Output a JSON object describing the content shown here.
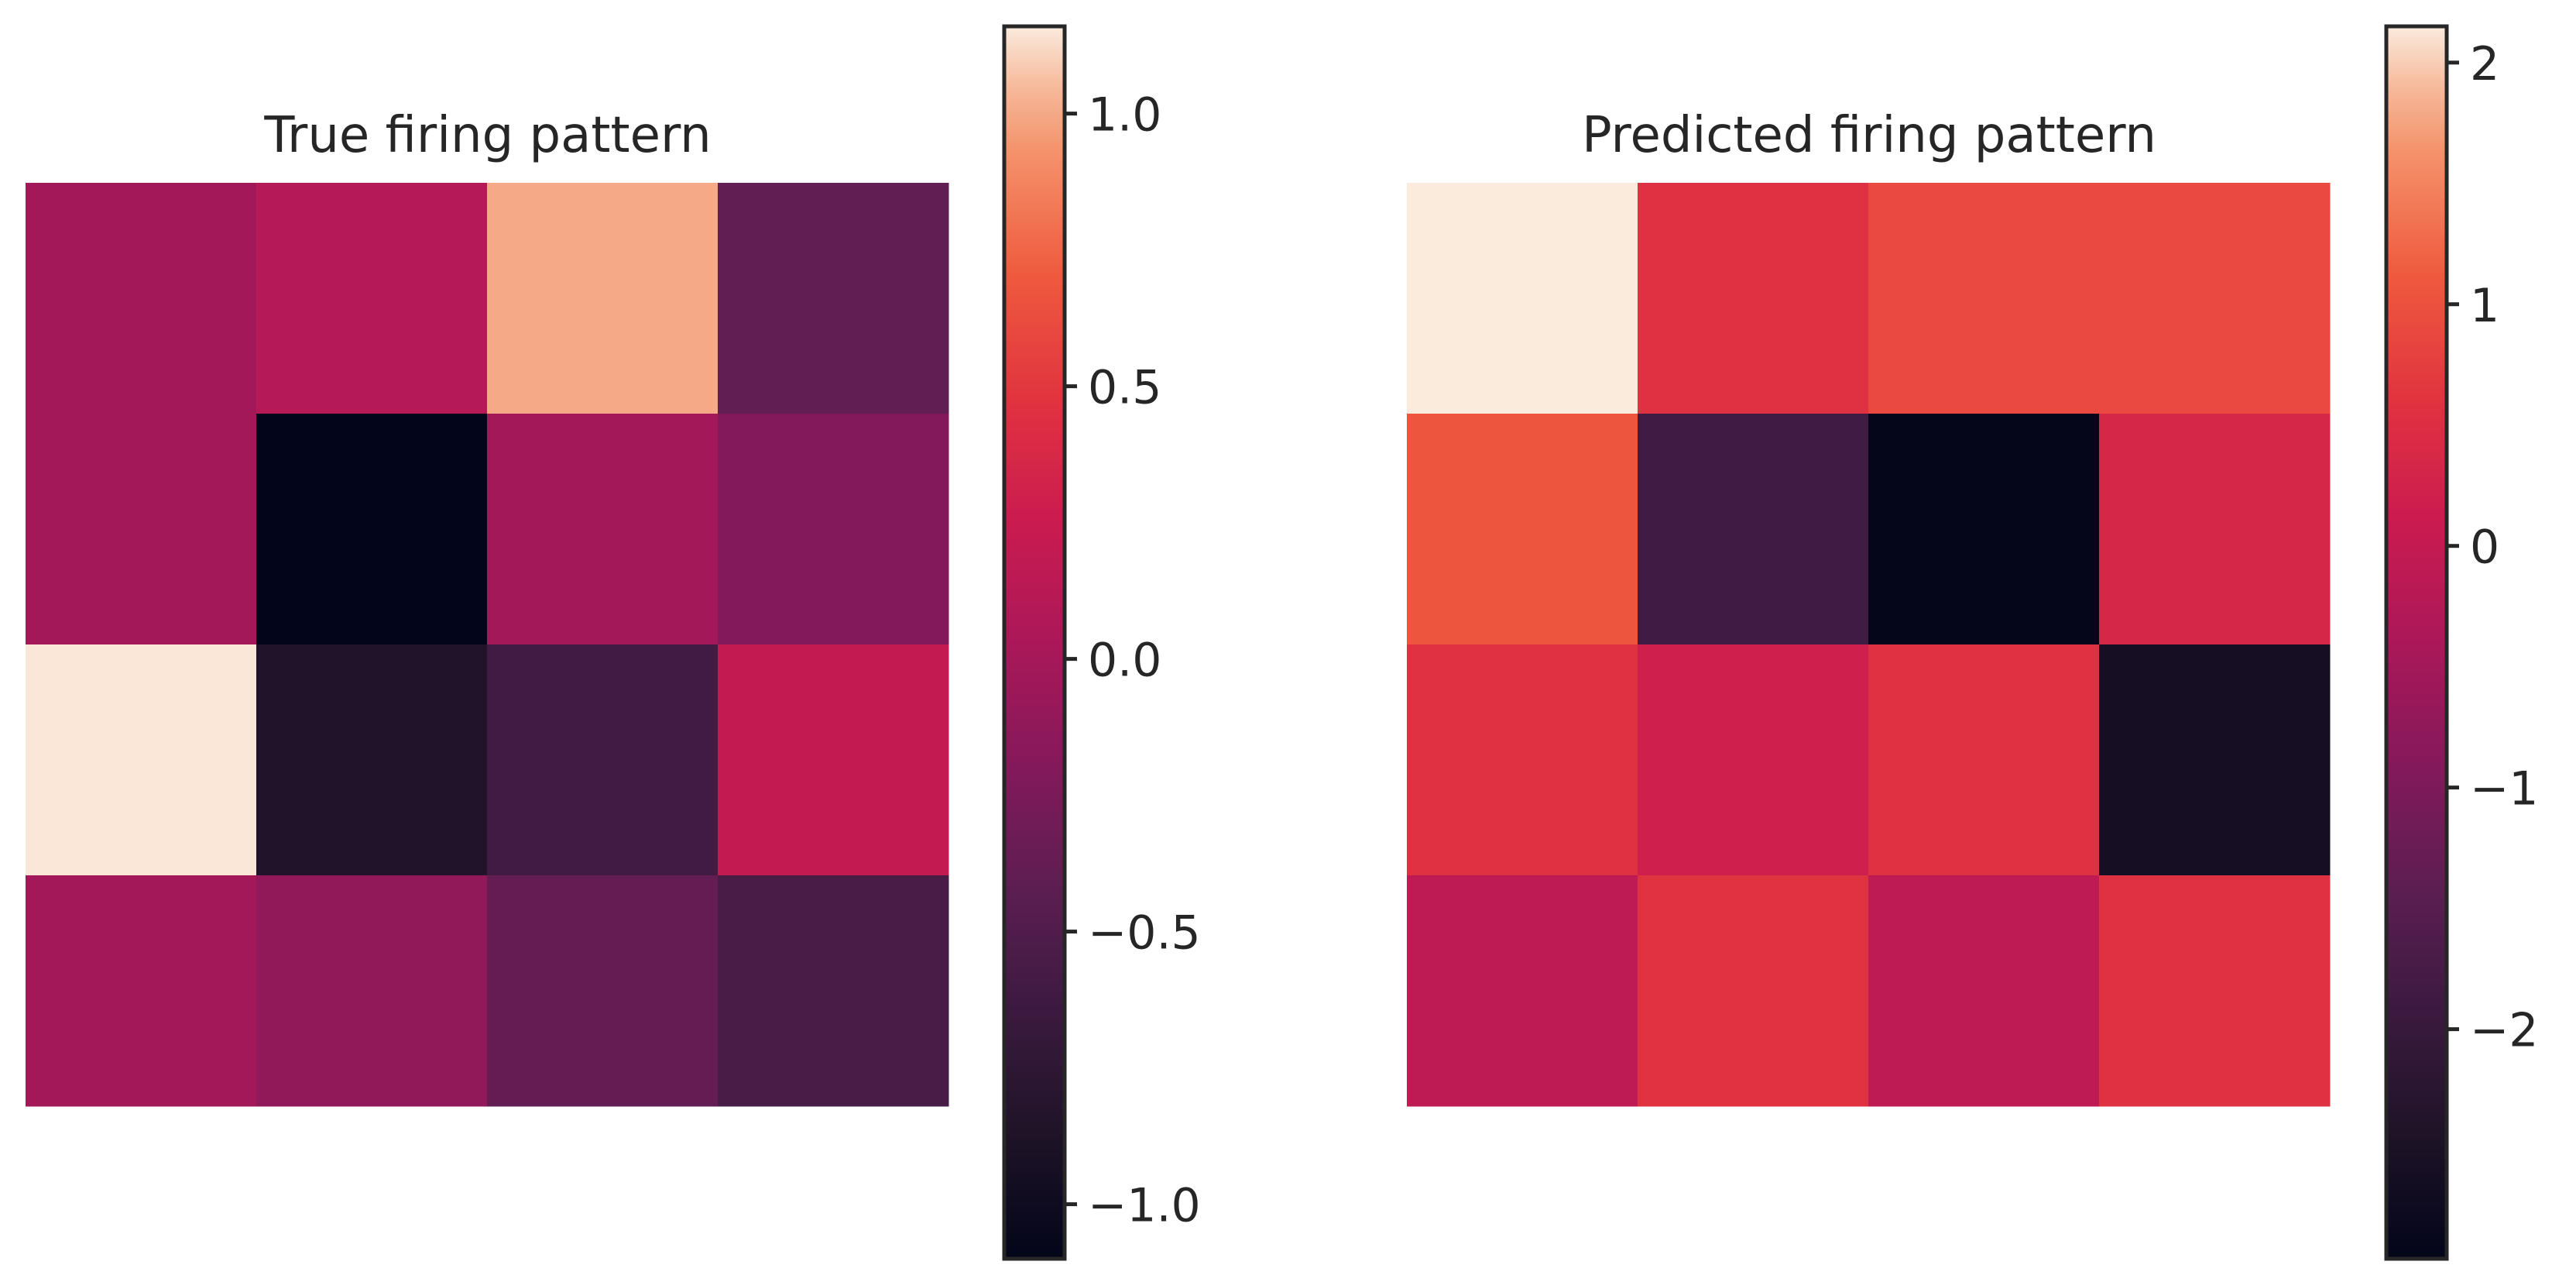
{
  "chart_data": [
    {
      "type": "heatmap",
      "title": "True firing pattern",
      "rows": 4,
      "cols": 4,
      "values": [
        [
          -0.02,
          0.1,
          1.0,
          -0.4
        ],
        [
          -0.02,
          -1.1,
          -0.02,
          -0.2
        ],
        [
          1.15,
          -0.85,
          -0.6,
          0.2
        ],
        [
          -0.02,
          -0.12,
          -0.38,
          -0.55
        ]
      ],
      "colorbar": {
        "range": [
          -1.1,
          1.16
        ],
        "ticks": [
          1.0,
          0.5,
          0.0,
          -0.5,
          -1.0
        ],
        "tick_labels": [
          "1.0",
          "0.5",
          "0.0",
          "−0.5",
          "−1.0"
        ]
      },
      "colormap": "rocket",
      "grid": false,
      "axes_visible": false
    },
    {
      "type": "heatmap",
      "title": "Predicted firing pattern",
      "rows": 4,
      "cols": 4,
      "values": [
        [
          2.15,
          0.55,
          0.9,
          0.9
        ],
        [
          1.05,
          -1.85,
          -2.9,
          0.35
        ],
        [
          0.55,
          0.2,
          0.55,
          -2.6
        ],
        [
          -0.1,
          0.6,
          -0.1,
          0.55
        ]
      ],
      "colorbar": {
        "range": [
          -2.95,
          2.15
        ],
        "ticks": [
          2,
          1,
          0,
          -1,
          -2
        ],
        "tick_labels": [
          "2",
          "1",
          "0",
          "−1",
          "−2"
        ]
      },
      "colormap": "rocket",
      "grid": false,
      "axes_visible": false
    }
  ]
}
